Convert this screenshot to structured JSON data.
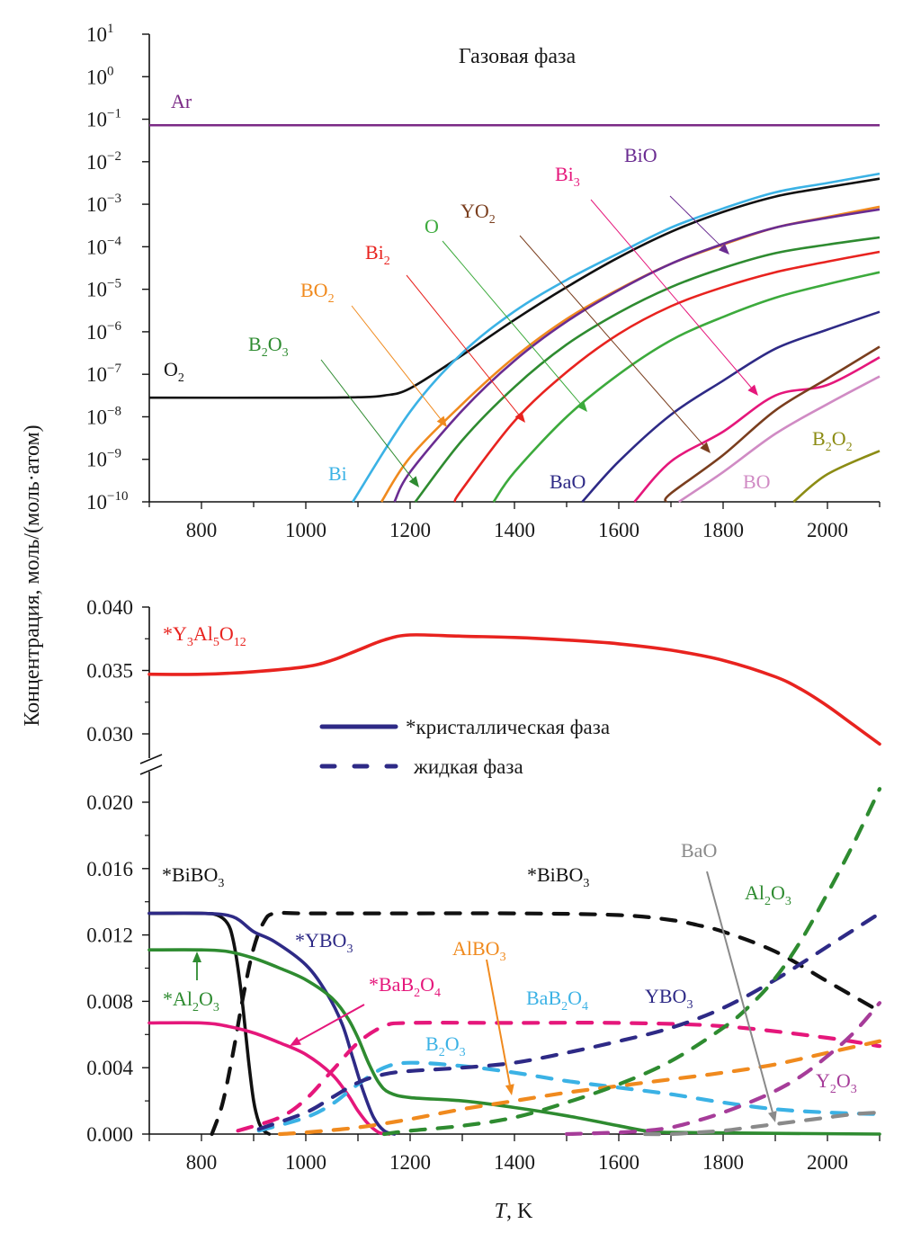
{
  "chart_data": [
    {
      "type": "line",
      "title": "Газовая фаза",
      "xlabel": "",
      "ylabel": "Концентрация, моль/(моль·атом)",
      "yscale": "log",
      "xlim": [
        700,
        2100
      ],
      "ylim": [
        1e-10,
        10
      ],
      "x_ticks": [
        800,
        1000,
        1200,
        1400,
        1600,
        1800,
        2000
      ],
      "y_ticks": [
        {
          "base": "10",
          "exp": "1"
        },
        {
          "base": "10",
          "exp": "0"
        },
        {
          "base": "10",
          "exp": "−1"
        },
        {
          "base": "10",
          "exp": "−2"
        },
        {
          "base": "10",
          "exp": "−3"
        },
        {
          "base": "10",
          "exp": "−4"
        },
        {
          "base": "10",
          "exp": "−5"
        },
        {
          "base": "10",
          "exp": "−6"
        },
        {
          "base": "10",
          "exp": "−7"
        },
        {
          "base": "10",
          "exp": "−8"
        },
        {
          "base": "10",
          "exp": "−9"
        },
        {
          "base": "10",
          "exp": "−10"
        }
      ],
      "series": [
        {
          "name": "Ar",
          "label": "Ar",
          "sub": "",
          "color": "#7b2a86",
          "x": [
            700,
            2100
          ],
          "log10": [
            -1.14,
            -1.14
          ]
        },
        {
          "name": "O2",
          "label": "O",
          "sub": "2",
          "color": "#111111",
          "x": [
            700,
            1000,
            1100,
            1150,
            1200,
            1300,
            1400,
            1500,
            1600,
            1700,
            1800,
            1900,
            2000,
            2100
          ],
          "log10": [
            -7.55,
            -7.55,
            -7.54,
            -7.5,
            -7.33,
            -6.55,
            -5.72,
            -4.95,
            -4.25,
            -3.65,
            -3.18,
            -2.82,
            -2.6,
            -2.4
          ]
        },
        {
          "name": "Bi",
          "label": "Bi",
          "sub": "",
          "color": "#3bb2e5",
          "x": [
            1090,
            1200,
            1300,
            1400,
            1500,
            1600,
            1700,
            1800,
            1900,
            2000,
            2100
          ],
          "log10": [
            -10,
            -7.88,
            -6.5,
            -5.52,
            -4.78,
            -4.15,
            -3.55,
            -3.1,
            -2.72,
            -2.5,
            -2.28
          ]
        },
        {
          "name": "BO2",
          "label": "BO",
          "sub": "2",
          "color": "#f08a1e",
          "x": [
            1145,
            1200,
            1300,
            1400,
            1500,
            1600,
            1700,
            1800,
            1900,
            2000,
            2100
          ],
          "log10": [
            -10,
            -8.95,
            -7.7,
            -6.6,
            -5.7,
            -5.0,
            -4.4,
            -3.95,
            -3.55,
            -3.3,
            -3.06
          ]
        },
        {
          "name": "BiO",
          "label": "BiO",
          "sub": "",
          "color": "#6a2c91",
          "x": [
            1170,
            1200,
            1300,
            1400,
            1500,
            1600,
            1700,
            1800,
            1900,
            2000,
            2100
          ],
          "log10": [
            -10,
            -9.3,
            -7.85,
            -6.68,
            -5.76,
            -5.02,
            -4.4,
            -3.93,
            -3.55,
            -3.32,
            -3.12
          ]
        },
        {
          "name": "B2O3",
          "label": "B",
          "sub": "2",
          "label2": "O",
          "sub2": "3",
          "color": "#2e8b30",
          "x": [
            1210,
            1300,
            1400,
            1500,
            1600,
            1700,
            1800,
            1900,
            2000,
            2100
          ],
          "log10": [
            -10,
            -8.55,
            -7.3,
            -6.3,
            -5.55,
            -4.95,
            -4.5,
            -4.15,
            -3.95,
            -3.78
          ]
        },
        {
          "name": "Bi2",
          "label": "Bi",
          "sub": "2",
          "color": "#e8231f",
          "x": [
            1285,
            1300,
            1400,
            1500,
            1600,
            1700,
            1800,
            1900,
            2000,
            2100
          ],
          "log10": [
            -10,
            -9.7,
            -8.1,
            -6.95,
            -6.05,
            -5.4,
            -4.95,
            -4.6,
            -4.35,
            -4.12
          ]
        },
        {
          "name": "O",
          "label": "O",
          "sub": "",
          "color": "#3caa3c",
          "x": [
            1360,
            1400,
            1500,
            1600,
            1700,
            1800,
            1900,
            2000,
            2100
          ],
          "log10": [
            -10,
            -9.3,
            -8.0,
            -7.0,
            -6.2,
            -5.65,
            -5.2,
            -4.88,
            -4.6
          ]
        },
        {
          "name": "BaO",
          "label": "BaO",
          "sub": "",
          "color": "#2e2a86",
          "x": [
            1530,
            1600,
            1700,
            1800,
            1900,
            2000,
            2100
          ],
          "log10": [
            -10,
            -9.05,
            -7.95,
            -7.15,
            -6.4,
            -5.95,
            -5.53
          ]
        },
        {
          "name": "Bi3",
          "label": "Bi",
          "sub": "3",
          "color": "#e5177b",
          "x": [
            1630,
            1700,
            1800,
            1900,
            2000,
            2100
          ],
          "log10": [
            -10,
            -9.05,
            -8.35,
            -7.5,
            -7.25,
            -6.6
          ]
        },
        {
          "name": "YO2",
          "label": "YO",
          "sub": "2",
          "color": "#7a3e1e",
          "x": [
            1690,
            1700,
            1800,
            1900,
            2000,
            2100
          ],
          "log10": [
            -10,
            -9.8,
            -8.9,
            -7.85,
            -7.1,
            -6.35
          ]
        },
        {
          "name": "BO",
          "label": "BO",
          "sub": "",
          "color": "#d08bc4",
          "x": [
            1715,
            1800,
            1900,
            2000,
            2100
          ],
          "log10": [
            -10,
            -9.3,
            -8.4,
            -7.7,
            -7.05
          ]
        },
        {
          "name": "B2O2",
          "label": "B",
          "sub": "2",
          "label2": "O",
          "sub2": "2",
          "color": "#8c8c14",
          "x": [
            1935,
            2000,
            2100
          ],
          "log10": [
            -10,
            -9.35,
            -8.8
          ]
        }
      ],
      "annotations": [
        "Ar",
        "O2",
        "Bi",
        "BO2",
        "B2O3",
        "Bi2",
        "O",
        "YO2",
        "Bi3",
        "BiO",
        "BaO",
        "BO",
        "B2O2"
      ]
    },
    {
      "type": "line",
      "title": "",
      "xlabel": "T, K",
      "xlabel_italic": "T",
      "xlabel_rest": ", K",
      "ylabel": "Концентрация, моль/(моль·атом)",
      "xlim": [
        700,
        2100
      ],
      "ylim_upper": [
        0.0285,
        0.04
      ],
      "ylim_lower": [
        0.0,
        0.0215
      ],
      "broken_axis": true,
      "x_ticks": [
        800,
        1000,
        1200,
        1400,
        1600,
        1800,
        2000
      ],
      "y_ticks_upper": [
        "0.040",
        "0.035",
        "0.030"
      ],
      "y_ticks_lower": [
        "0.020",
        "0.016",
        "0.012",
        "0.008",
        "0.004",
        "0.000"
      ],
      "legend": {
        "placement": "top-center",
        "items": [
          {
            "label": "*кристаллическая фаза",
            "style": "solid",
            "color": "#2e2a86"
          },
          {
            "label": "жидкая фаза",
            "style": "dashed",
            "color": "#2e2a86"
          }
        ]
      },
      "series": [
        {
          "name": "*Y3Al5O12",
          "phase": "crystal",
          "style": "solid",
          "color": "#e8231f",
          "panel": "upper",
          "x": [
            700,
            800,
            900,
            1000,
            1050,
            1100,
            1150,
            1200,
            1300,
            1400,
            1500,
            1600,
            1700,
            1800,
            1900,
            1950,
            2000,
            2050,
            2100
          ],
          "y": [
            0.0347,
            0.0347,
            0.0349,
            0.0353,
            0.0358,
            0.0366,
            0.0374,
            0.0378,
            0.0377,
            0.0376,
            0.0374,
            0.0371,
            0.0366,
            0.0358,
            0.0345,
            0.0335,
            0.0322,
            0.0307,
            0.0292
          ]
        },
        {
          "name": "*BiBO3 (crystal)",
          "phase": "crystal",
          "style": "solid",
          "color": "#111111",
          "panel": "lower",
          "x": [
            700,
            800,
            830,
            850,
            860,
            870,
            880,
            890,
            900,
            910,
            920,
            930
          ],
          "y": [
            0.0133,
            0.0133,
            0.0132,
            0.0127,
            0.0118,
            0.01,
            0.0075,
            0.0045,
            0.002,
            0.0007,
            0.0002,
            0.0
          ]
        },
        {
          "name": "*BiBO3 (liquid)",
          "phase": "liquid",
          "style": "dashed",
          "color": "#111111",
          "panel": "lower",
          "x": [
            820,
            840,
            860,
            880,
            900,
            920,
            940,
            1000,
            1200,
            1400,
            1600,
            1700,
            1750,
            1800,
            1900,
            2000,
            2100
          ],
          "y": [
            0.0,
            0.0018,
            0.0048,
            0.0083,
            0.0112,
            0.0128,
            0.0133,
            0.0133,
            0.0133,
            0.0133,
            0.0132,
            0.0129,
            0.0126,
            0.0122,
            0.011,
            0.0092,
            0.0074
          ]
        },
        {
          "name": "*YBO3",
          "phase": "crystal",
          "style": "solid",
          "color": "#2e2a86",
          "panel": "lower",
          "x": [
            700,
            800,
            860,
            900,
            940,
            1000,
            1040,
            1070,
            1090,
            1110,
            1130,
            1150,
            1170
          ],
          "y": [
            0.0133,
            0.0133,
            0.0131,
            0.0122,
            0.0116,
            0.0102,
            0.0085,
            0.0066,
            0.0046,
            0.0026,
            0.001,
            0.0002,
            0.0
          ]
        },
        {
          "name": "*Al2O3",
          "phase": "crystal",
          "style": "solid",
          "color": "#2e8b30",
          "panel": "lower",
          "x": [
            700,
            800,
            850,
            900,
            950,
            1000,
            1050,
            1080,
            1100,
            1120,
            1140,
            1160,
            1200,
            1300,
            1400,
            1500,
            1600,
            1650,
            1700,
            2100
          ],
          "y": [
            0.0111,
            0.0111,
            0.011,
            0.0106,
            0.01,
            0.0093,
            0.0082,
            0.007,
            0.0058,
            0.0043,
            0.0031,
            0.0025,
            0.0022,
            0.002,
            0.0016,
            0.0011,
            0.0005,
            0.0002,
            0.0001,
            0.0
          ]
        },
        {
          "name": "*BaB2O4",
          "phase": "crystal",
          "style": "solid",
          "color": "#e5177b",
          "panel": "lower",
          "x": [
            700,
            800,
            850,
            900,
            950,
            1000,
            1050,
            1080,
            1100,
            1120,
            1140,
            1160
          ],
          "y": [
            0.0067,
            0.0067,
            0.0065,
            0.0061,
            0.0055,
            0.0048,
            0.0036,
            0.0024,
            0.0014,
            0.0006,
            0.0001,
            0.0
          ]
        },
        {
          "name": "BaB2O4 (liquid)",
          "phase": "liquid",
          "style": "dashed",
          "color": "#e5177b",
          "panel": "lower",
          "x": [
            870,
            950,
            1000,
            1050,
            1100,
            1150,
            1200,
            1400,
            1600,
            1800,
            2000,
            2100
          ],
          "y": [
            0.0002,
            0.001,
            0.0021,
            0.0038,
            0.0055,
            0.0065,
            0.0067,
            0.0067,
            0.0067,
            0.0065,
            0.0058,
            0.0053
          ]
        },
        {
          "name": "BaB2O4 (liquid, light)",
          "phase": "liquid",
          "style": "dashed",
          "color": "#3bb2e5",
          "panel": "lower",
          "x": [
            910,
            1000,
            1050,
            1100,
            1150,
            1200,
            1300,
            1400,
            1500,
            1600,
            1700,
            1800,
            1900,
            2000,
            2100
          ],
          "y": [
            0.0002,
            0.001,
            0.0018,
            0.003,
            0.004,
            0.0043,
            0.0041,
            0.0037,
            0.0032,
            0.0028,
            0.0024,
            0.0019,
            0.0015,
            0.0013,
            0.0012
          ]
        },
        {
          "name": "B2O3 (liquid)",
          "phase": "liquid",
          "style": "dashed",
          "color": "#3bb2e5",
          "panel": "lower",
          "x": [
            910,
            1000,
            1050,
            1100,
            1150,
            1200,
            1300,
            1400,
            1500,
            1600,
            1700,
            1800,
            1900,
            2000,
            2100
          ],
          "y": [
            0.0002,
            0.001,
            0.0018,
            0.003,
            0.004,
            0.0043,
            0.0041,
            0.0037,
            0.0032,
            0.0028,
            0.0024,
            0.0019,
            0.0015,
            0.0013,
            0.0012
          ]
        },
        {
          "name": "YBO3 (liquid)",
          "phase": "liquid",
          "style": "dashed",
          "color": "#2e2a86",
          "panel": "lower",
          "x": [
            910,
            1000,
            1050,
            1100,
            1150,
            1200,
            1300,
            1400,
            1500,
            1600,
            1700,
            1800,
            1900,
            2000,
            2100
          ],
          "y": [
            0.0003,
            0.0013,
            0.0022,
            0.0031,
            0.0036,
            0.0038,
            0.004,
            0.0043,
            0.0049,
            0.0056,
            0.0064,
            0.0076,
            0.0093,
            0.0113,
            0.0133
          ]
        },
        {
          "name": "AlBO3 (liquid)",
          "phase": "liquid",
          "style": "dashed",
          "color": "#f08a1e",
          "panel": "lower",
          "x": [
            950,
            1000,
            1100,
            1200,
            1300,
            1400,
            1500,
            1600,
            1700,
            1800,
            1900,
            2000,
            2100
          ],
          "y": [
            0.0,
            0.0001,
            0.0004,
            0.0009,
            0.0015,
            0.002,
            0.0025,
            0.0029,
            0.0033,
            0.0037,
            0.0042,
            0.0049,
            0.0056
          ]
        },
        {
          "name": "Al2O3 (liquid)",
          "phase": "liquid",
          "style": "dashed",
          "color": "#2e8b30",
          "panel": "lower",
          "x": [
            1150,
            1200,
            1300,
            1400,
            1500,
            1600,
            1700,
            1800,
            1850,
            1900,
            1950,
            2000,
            2050,
            2100
          ],
          "y": [
            0.0,
            0.0002,
            0.0005,
            0.001,
            0.0019,
            0.003,
            0.0044,
            0.0064,
            0.0077,
            0.0094,
            0.0117,
            0.0145,
            0.0175,
            0.0208
          ]
        },
        {
          "name": "Y2O3 (liquid)",
          "phase": "liquid",
          "style": "dashed",
          "color": "#a63c99",
          "panel": "lower",
          "x": [
            1500,
            1600,
            1650,
            1700,
            1750,
            1800,
            1850,
            1900,
            1950,
            2000,
            2050,
            2100
          ],
          "y": [
            0.0,
            0.0001,
            0.0002,
            0.0004,
            0.0008,
            0.0013,
            0.0019,
            0.0026,
            0.0035,
            0.0047,
            0.0061,
            0.0079
          ]
        },
        {
          "name": "BaO (liquid)",
          "phase": "liquid",
          "style": "dashed",
          "color": "#8a8a8a",
          "panel": "lower",
          "x": [
            1650,
            1700,
            1750,
            1800,
            1850,
            1900,
            1950,
            2000,
            2050,
            2100
          ],
          "y": [
            0.0,
            0.0,
            0.0001,
            0.0002,
            0.0004,
            0.0006,
            0.0008,
            0.001,
            0.0012,
            0.0013
          ]
        }
      ]
    }
  ],
  "labels": {
    "top_title": "Газовая фаза",
    "ylabel": "Концентрация, моль/(моль·атом)",
    "xlabel_T": "T",
    "xlabel_rest": ", K",
    "legend_crystal": "*кристаллическая фаза",
    "legend_liquid": "жидкая фаза"
  }
}
